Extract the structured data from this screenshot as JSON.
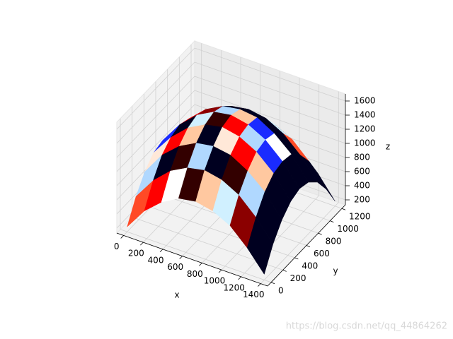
{
  "chart_data": {
    "type": "surface3d",
    "x_label": "x",
    "y_label": "y",
    "z_label": "z",
    "x": [
      0,
      175,
      350,
      525,
      700,
      875,
      1050,
      1225,
      1400
    ],
    "y": [
      0,
      150,
      300,
      450,
      600,
      750,
      900,
      1050,
      1200
    ],
    "z": [
      [
        200,
        510,
        720,
        860,
        900,
        850,
        730,
        500,
        210
      ],
      [
        500,
        810,
        1030,
        1160,
        1210,
        1160,
        1030,
        800,
        510
      ],
      [
        720,
        1040,
        1250,
        1380,
        1420,
        1380,
        1240,
        1030,
        720
      ],
      [
        860,
        1160,
        1380,
        1510,
        1560,
        1510,
        1380,
        1160,
        850
      ],
      [
        900,
        1210,
        1430,
        1560,
        1600,
        1550,
        1420,
        1200,
        900
      ],
      [
        850,
        1160,
        1380,
        1510,
        1550,
        1520,
        1380,
        1170,
        860
      ],
      [
        720,
        1030,
        1250,
        1380,
        1420,
        1380,
        1250,
        1030,
        730
      ],
      [
        510,
        810,
        1030,
        1160,
        1200,
        1160,
        1040,
        810,
        500
      ],
      [
        200,
        500,
        730,
        850,
        900,
        860,
        720,
        510,
        200
      ]
    ],
    "face_colors": [
      "#ff4a26",
      "#000020",
      "#ffffff",
      "#1a2bff",
      "#ffc8a0",
      "#b0d8ff",
      "#8b0000",
      "#ff0000",
      "#4d7aff",
      "#330000",
      "#ffe8d8",
      "#d0f0ff"
    ],
    "xlim": [
      -70,
      1470
    ],
    "ylim": [
      -60,
      1260
    ],
    "zlim": [
      130,
      1700
    ],
    "xticks": [
      0,
      200,
      400,
      600,
      800,
      1000,
      1200,
      1400
    ],
    "yticks": [
      0,
      200,
      400,
      600,
      800,
      1000,
      1200
    ],
    "zticks": [
      200,
      400,
      600,
      800,
      1000,
      1200,
      1400,
      1600
    ],
    "grid": true,
    "watermark": "https://blog.csdn.net/qq_44864262"
  }
}
